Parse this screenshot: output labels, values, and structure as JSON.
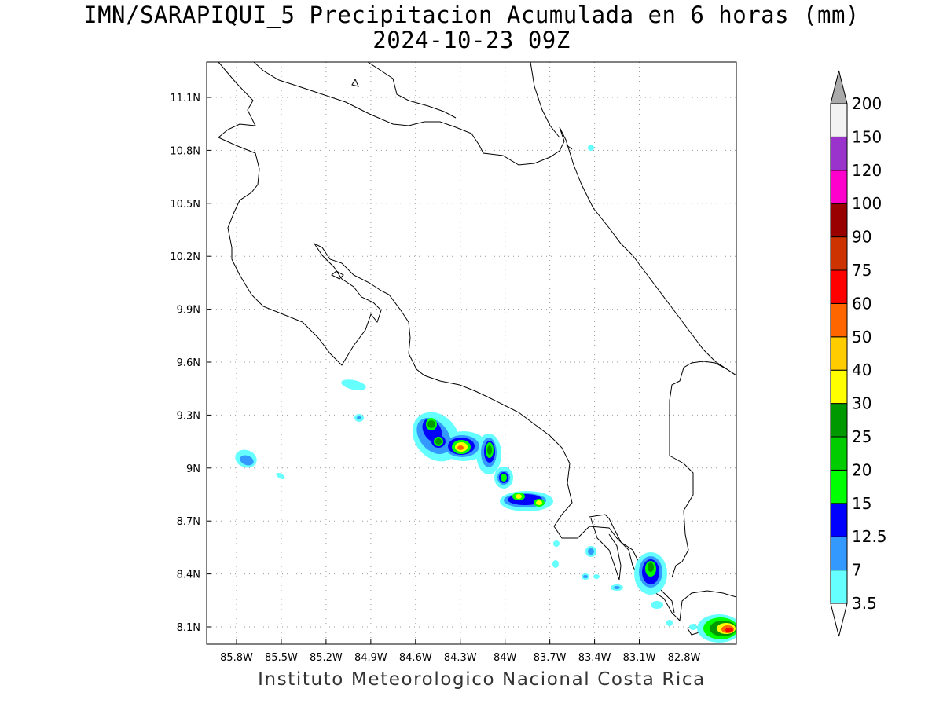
{
  "title": {
    "line1": "IMN/SARAPIQUI_5 Precipitacion Acumulada en 6 horas (mm)",
    "line2": "2024-10-23 09Z"
  },
  "footer": "Instituto Meteorologico Nacional Costa Rica",
  "map": {
    "lon_range": [
      -86.0,
      -83.0
    ],
    "lat_range": [
      8.0,
      11.2
    ],
    "x_ticks": [
      {
        "value": -85.8,
        "label": "85.8W"
      },
      {
        "value": -85.5,
        "label": "85.5W"
      },
      {
        "value": -85.2,
        "label": "85.2W"
      },
      {
        "value": -84.9,
        "label": "84.9W"
      },
      {
        "value": -84.6,
        "label": "84.6W"
      },
      {
        "value": -84.3,
        "label": "84.3W"
      },
      {
        "value": -84.0,
        "label": "84W"
      },
      {
        "value": -83.7,
        "label": "83.7W"
      },
      {
        "value": -83.4,
        "label": "83.4W"
      },
      {
        "value": -83.1,
        "label": "83.1W"
      },
      {
        "value": -82.8,
        "label": "82.8W"
      }
    ],
    "y_ticks": [
      {
        "value": 11.1,
        "label": "11.1N"
      },
      {
        "value": 10.8,
        "label": "10.8N"
      },
      {
        "value": 10.5,
        "label": "10.5N"
      },
      {
        "value": 10.2,
        "label": "10.2N"
      },
      {
        "value": 9.9,
        "label": "9.9N"
      },
      {
        "value": 9.6,
        "label": "9.6N"
      },
      {
        "value": 9.3,
        "label": "9.3N"
      },
      {
        "value": 9.0,
        "label": "9N"
      },
      {
        "value": 8.7,
        "label": "8.7N"
      },
      {
        "value": 8.4,
        "label": "8.4N"
      },
      {
        "value": 8.1,
        "label": "8.1N"
      }
    ],
    "grid": "dotted"
  },
  "colorbar": {
    "labels": [
      "3.5",
      "7",
      "12.5",
      "15",
      "20",
      "25",
      "30",
      "40",
      "50",
      "60",
      "75",
      "90",
      "100",
      "120",
      "150",
      "200"
    ],
    "colors": [
      "#66ffff",
      "#3399ff",
      "#0000ff",
      "#00ff00",
      "#00cc00",
      "#009900",
      "#ffff00",
      "#ffcc00",
      "#ff6600",
      "#ff0000",
      "#cc3300",
      "#990000",
      "#ff00cc",
      "#9933cc",
      "#f2f2f2",
      "#aaaaaa"
    ]
  }
}
